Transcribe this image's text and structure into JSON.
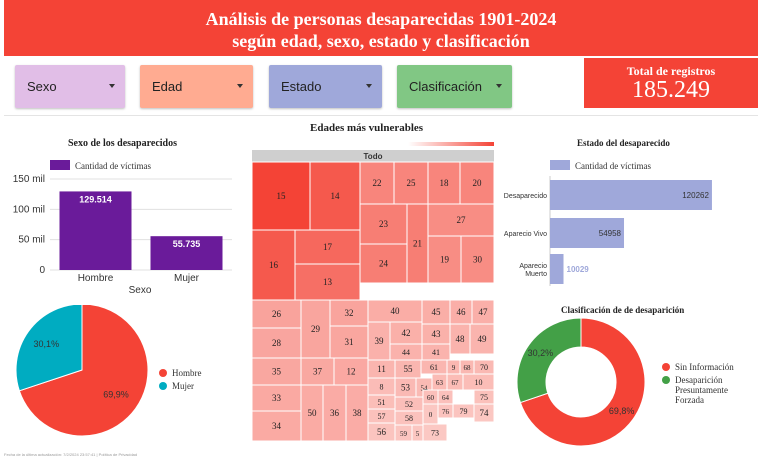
{
  "header": {
    "line1": "Análisis de personas desaparecidas 1901-2024",
    "line2": "según edad, sexo, estado y clasificación"
  },
  "filters": [
    {
      "label": "Sexo",
      "color": "#e1bee7"
    },
    {
      "label": "Edad",
      "color": "#ffab91"
    },
    {
      "label": "Estado",
      "color": "#9fa8da"
    },
    {
      "label": "Clasificación",
      "color": "#81c784"
    }
  ],
  "total": {
    "label": "Total de registros",
    "value": "185.249"
  },
  "colors": {
    "accent": "#f44336",
    "purple": "#6a1b9a",
    "lavender": "#9fa8da",
    "teal": "#00acc1",
    "green": "#43a047"
  },
  "chart_data": [
    {
      "type": "bar",
      "title": "Sexo de los desaparecidos",
      "legend": "Cantidad de víctimas",
      "xlabel": "Sexo",
      "categories": [
        "Hombre",
        "Mujer"
      ],
      "values": [
        129514,
        55735
      ],
      "value_labels": [
        "129.514",
        "55.735"
      ],
      "yticks": [
        "0",
        "50 mil",
        "100 mil",
        "150 mil"
      ],
      "ylim": [
        0,
        150000
      ]
    },
    {
      "type": "pie",
      "labels": [
        "Hombre",
        "Mujer"
      ],
      "values": [
        69.9,
        30.1
      ],
      "value_labels": [
        "69,9%",
        "30,1%"
      ],
      "colors": [
        "#f44336",
        "#00acc1"
      ],
      "legend_position": "right"
    },
    {
      "type": "heatmap",
      "title": "Edades más vulnerables",
      "root_label": "Todo",
      "cells": [
        "15",
        "14",
        "22",
        "25",
        "18",
        "20",
        "16",
        "17",
        "23",
        "27",
        "21",
        "13",
        "24",
        "19",
        "30",
        "26",
        "32",
        "29",
        "28",
        "31",
        "35",
        "37",
        "12",
        "33",
        "34",
        "50",
        "36",
        "38",
        "40",
        "45",
        "46",
        "47",
        "42",
        "43",
        "39",
        "44",
        "48",
        "41",
        "49",
        "11",
        "55",
        "61",
        "9",
        "68",
        "70",
        "53",
        "54",
        "63",
        "67",
        "8",
        "10",
        "51",
        "52",
        "60",
        "64",
        "75",
        "57",
        "58",
        "76",
        "79",
        "56",
        "59",
        "5",
        "0",
        "74",
        "73"
      ]
    },
    {
      "type": "bar",
      "orientation": "horizontal",
      "title": "Estado del desaparecido",
      "legend": "Cantidad de víctimas",
      "categories": [
        "Desaparecido",
        "Aparecio Vivo",
        "Aparecio Muerto"
      ],
      "values": [
        120262,
        54958,
        10029
      ],
      "value_labels": [
        "120262",
        "54958",
        "10029"
      ]
    },
    {
      "type": "pie",
      "donut": true,
      "title": "Clasificación de de desaparición",
      "labels": [
        "Sin Información",
        "Desaparición Presuntamente Forzada"
      ],
      "values": [
        69.8,
        30.2
      ],
      "value_labels": [
        "69,8%",
        "30,2%"
      ],
      "colors": [
        "#f44336",
        "#43a047"
      ],
      "legend_position": "right"
    }
  ],
  "footer": "Fecha de la última actualización: 7/2/2024 23:57:41 | Política de Privacidad"
}
